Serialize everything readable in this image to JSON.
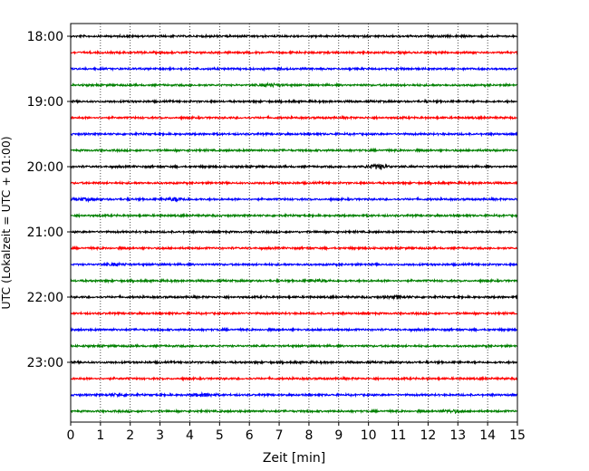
{
  "chart_data": {
    "type": "line",
    "title": "",
    "xlabel": "Zeit  [min]",
    "ylabel": "UTC (Lokalzeit = UTC + 01:00)",
    "xlim": [
      0,
      15
    ],
    "x_ticks": [
      0,
      1,
      2,
      3,
      4,
      5,
      6,
      7,
      8,
      9,
      10,
      11,
      12,
      13,
      14,
      15
    ],
    "x_tick_labels": [
      "0",
      "1",
      "2",
      "3",
      "4",
      "5",
      "6",
      "7",
      "8",
      "9",
      "10",
      "11",
      "12",
      "13",
      "14",
      "15"
    ],
    "y_tick_labels": [
      "18:00",
      "19:00",
      "20:00",
      "21:00",
      "22:00",
      "23:00"
    ],
    "grid": {
      "x": true,
      "style": "dotted"
    },
    "series_colors": [
      "#000000",
      "#ff0000",
      "#0000ff",
      "#008000"
    ],
    "trace_start_times": [
      "18:00",
      "18:15",
      "18:30",
      "18:45",
      "19:00",
      "19:15",
      "19:30",
      "19:45",
      "20:00",
      "20:15",
      "20:30",
      "20:45",
      "21:00",
      "21:15",
      "21:30",
      "21:45",
      "22:00",
      "22:15",
      "22:30",
      "22:45",
      "23:00",
      "23:15",
      "23:30",
      "23:45"
    ],
    "trace_duration_min": 15,
    "events": [
      {
        "trace": "18:45",
        "x": 6.7,
        "amp": 0.9
      },
      {
        "trace": "20:00",
        "x": 10.3,
        "amp": 1.8
      },
      {
        "trace": "20:30",
        "x": 3.5,
        "amp": 1.2
      },
      {
        "trace": "20:30",
        "x": 0.5,
        "amp": 0.8
      },
      {
        "trace": "21:30",
        "x": 1.5,
        "amp": 0.7
      },
      {
        "trace": "21:45",
        "x": 8.3,
        "amp": 0.8
      },
      {
        "trace": "22:00",
        "x": 11.0,
        "amp": 1.0
      },
      {
        "trace": "23:30",
        "x": 4.5,
        "amp": 1.1
      },
      {
        "trace": "23:30",
        "x": 1.5,
        "amp": 0.7
      },
      {
        "trace": "23:45",
        "x": 12.8,
        "amp": 0.9
      }
    ]
  }
}
